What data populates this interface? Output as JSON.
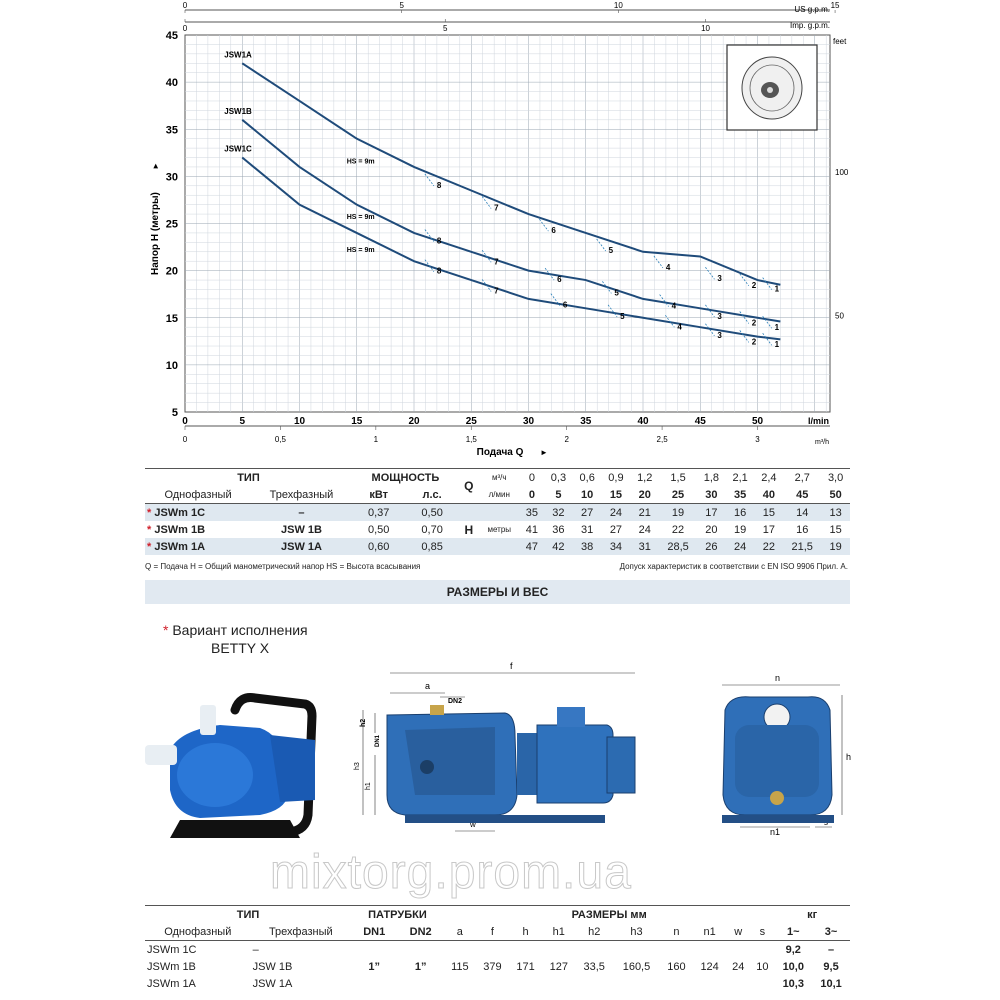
{
  "chart_data": {
    "type": "line",
    "xlabel": "Подача Q",
    "ylabel": "Напор H (метры)",
    "x_unit": "l/min",
    "m3_unit": "m³/h",
    "x_range": [
      0,
      55
    ],
    "y_range": [
      5,
      45
    ],
    "x_ticks": [
      "0",
      "5",
      "10",
      "15",
      "20",
      "25",
      "30",
      "35",
      "40",
      "45",
      "50"
    ],
    "y_ticks": [
      "5",
      "10",
      "15",
      "20",
      "25",
      "30",
      "35",
      "40",
      "45"
    ],
    "m3_ticks": [
      "0",
      "0,5",
      "1",
      "1,5",
      "2",
      "2,5",
      "3"
    ],
    "us_gpm_label": "US g.p.m.",
    "us_gpm_ticks": [
      "0",
      "5",
      "10",
      "15"
    ],
    "imp_gpm_label": "Imp. g.p.m.",
    "imp_gpm_ticks": [
      "0",
      "5",
      "10"
    ],
    "feet_label": "feet",
    "feet_ticks": [
      "100",
      "50"
    ],
    "grid": true,
    "series": [
      {
        "name": "JSW1A",
        "x": [
          5,
          10,
          15,
          20,
          25,
          30,
          35,
          40,
          45,
          50,
          52
        ],
        "y": [
          42,
          38,
          34,
          31,
          28.5,
          26,
          24,
          22,
          21.5,
          19,
          18.5
        ]
      },
      {
        "name": "JSW1B",
        "x": [
          5,
          10,
          15,
          20,
          25,
          30,
          35,
          40,
          45,
          50,
          52
        ],
        "y": [
          36,
          31,
          27,
          24,
          22,
          20,
          19,
          17,
          16,
          15,
          14.6
        ]
      },
      {
        "name": "JSW1C",
        "x": [
          5,
          10,
          15,
          20,
          25,
          30,
          35,
          40,
          45,
          50,
          52
        ],
        "y": [
          32,
          27,
          24,
          21,
          19,
          17,
          16,
          15,
          14,
          13,
          12.7
        ]
      }
    ],
    "annotations": [
      {
        "text": "HS = 9m",
        "x": 15,
        "y": 31.8
      },
      {
        "text": "HS = 9m",
        "x": 15,
        "y": 25.9
      },
      {
        "text": "HS = 9m",
        "x": 15,
        "y": 22.4
      },
      {
        "text": "8",
        "x": 22,
        "y": 29.2
      },
      {
        "text": "7",
        "x": 27,
        "y": 26.8
      },
      {
        "text": "6",
        "x": 32,
        "y": 24.4
      },
      {
        "text": "5",
        "x": 37,
        "y": 22.3
      },
      {
        "text": "4",
        "x": 42,
        "y": 20.5
      },
      {
        "text": "3",
        "x": 46.5,
        "y": 19.3
      },
      {
        "text": "2",
        "x": 49.5,
        "y": 18.6
      },
      {
        "text": "1",
        "x": 51.5,
        "y": 18.2
      },
      {
        "text": "8",
        "x": 22,
        "y": 23.3
      },
      {
        "text": "7",
        "x": 27,
        "y": 21.1
      },
      {
        "text": "6",
        "x": 32.5,
        "y": 19.2
      },
      {
        "text": "5",
        "x": 37.5,
        "y": 17.8
      },
      {
        "text": "4",
        "x": 42.5,
        "y": 16.4
      },
      {
        "text": "3",
        "x": 46.5,
        "y": 15.3
      },
      {
        "text": "2",
        "x": 49.5,
        "y": 14.6
      },
      {
        "text": "1",
        "x": 51.5,
        "y": 14.1
      },
      {
        "text": "8",
        "x": 22,
        "y": 20.1
      },
      {
        "text": "7",
        "x": 27,
        "y": 18.0
      },
      {
        "text": "6",
        "x": 33,
        "y": 16.5
      },
      {
        "text": "5",
        "x": 38,
        "y": 15.3
      },
      {
        "text": "4",
        "x": 43,
        "y": 14.2
      },
      {
        "text": "3",
        "x": 46.5,
        "y": 13.3
      },
      {
        "text": "2",
        "x": 49.5,
        "y": 12.6
      },
      {
        "text": "1",
        "x": 51.5,
        "y": 12.3
      }
    ]
  },
  "perf_table": {
    "type_header": "ТИП",
    "power_header": "МОЩНОСТЬ",
    "single_phase": "Однофазный",
    "three_phase": "Трехфазный",
    "kw": "кВт",
    "hp": "л.с.",
    "q_label": "Q",
    "m3h": "м³/ч",
    "lmin": "л/мин",
    "h_label": "H",
    "h_unit": "метры",
    "m3_values": [
      "0",
      "0,3",
      "0,6",
      "0,9",
      "1,2",
      "1,5",
      "1,8",
      "2,1",
      "2,4",
      "2,7",
      "3,0"
    ],
    "lmin_values": [
      "0",
      "5",
      "10",
      "15",
      "20",
      "25",
      "30",
      "35",
      "40",
      "45",
      "50"
    ],
    "rows": [
      {
        "star": "*",
        "single": "JSWm 1C",
        "three": "–",
        "kw": "0,37",
        "hp": "0,50",
        "h": [
          "35",
          "32",
          "27",
          "24",
          "21",
          "19",
          "17",
          "16",
          "15",
          "14",
          "13"
        ]
      },
      {
        "star": "*",
        "single": "JSWm 1B",
        "three": "JSW 1B",
        "kw": "0,50",
        "hp": "0,70",
        "h": [
          "41",
          "36",
          "31",
          "27",
          "24",
          "22",
          "20",
          "19",
          "17",
          "16",
          "15"
        ]
      },
      {
        "star": "*",
        "single": "JSWm 1A",
        "three": "JSW 1A",
        "kw": "0,60",
        "hp": "0,85",
        "h": [
          "47",
          "42",
          "38",
          "34",
          "31",
          "28,5",
          "26",
          "24",
          "22",
          "21,5",
          "19"
        ]
      }
    ]
  },
  "notes": {
    "legend": "Q = Подача  H = Общий манометрический напор  HS = Высота всасывания",
    "tolerance": "Допуск характеристик в соответствии с EN ISO 9906 Прил. А."
  },
  "section_title": "РАЗМЕРЫ И ВЕС",
  "variant": {
    "star": "*",
    "line1": "Вариант исполнения",
    "line2": "BETTY X"
  },
  "drawing_labels": {
    "a": "a",
    "f": "f",
    "dn2": "DN2",
    "dn1": "DN1",
    "h2": "h2",
    "h3": "h3",
    "h1": "h1",
    "w": "w",
    "n": "n",
    "h": "h",
    "n1": "n1",
    "s": "s"
  },
  "watermark": "mixtorg.prom.ua",
  "dim_table": {
    "type_header": "ТИП",
    "ports_header": "ПАТРУБКИ",
    "dims_header": "РАЗМЕРЫ мм",
    "kg_header": "кг",
    "single_phase": "Однофазный",
    "three_phase": "Трехфазный",
    "cols": [
      "DN1",
      "DN2",
      "a",
      "f",
      "h",
      "h1",
      "h2",
      "h3",
      "n",
      "n1",
      "w",
      "s",
      "1~",
      "3~"
    ],
    "rows": [
      {
        "single": "JSWm 1C",
        "three": "–",
        "kg1": "9,2",
        "kg3": "–"
      },
      {
        "single": "JSWm 1B",
        "three": "JSW 1B",
        "kg1": "10,0",
        "kg3": "9,5"
      },
      {
        "single": "JSWm 1A",
        "three": "JSW 1A",
        "kg1": "10,3",
        "kg3": "10,1"
      }
    ],
    "shared": [
      "1”",
      "1”",
      "115",
      "379",
      "171",
      "127",
      "33,5",
      "160,5",
      "160",
      "124",
      "24",
      "10"
    ]
  }
}
